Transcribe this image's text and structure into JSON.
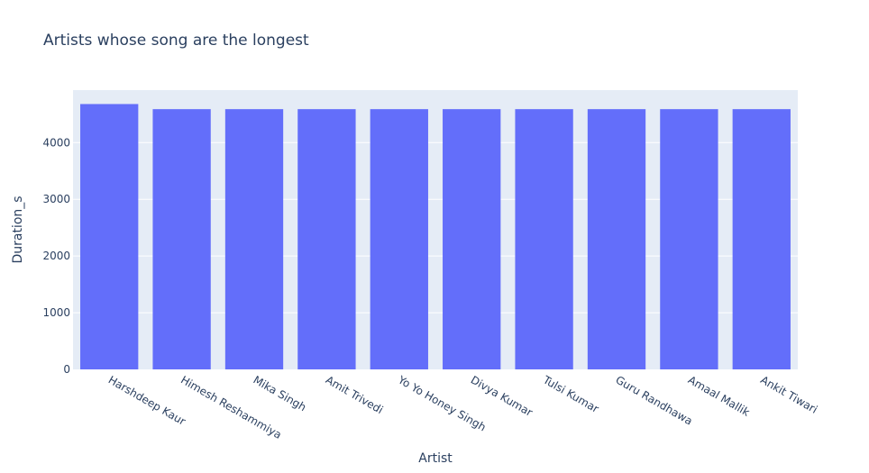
{
  "chart_data": {
    "type": "bar",
    "title": "Artists whose song are the longest",
    "xlabel": "Artist",
    "ylabel": "Duration_s",
    "categories": [
      "Harshdeep Kaur",
      "Himesh Reshammiya",
      "Mika Singh",
      "Amit Trivedi",
      "Yo Yo Honey Singh",
      "Divya Kumar",
      "Tulsi Kumar",
      "Guru Randhawa",
      "Amaal Mallik",
      "Ankit Tiwari"
    ],
    "values": [
      4680,
      4590,
      4590,
      4590,
      4590,
      4590,
      4590,
      4590,
      4590,
      4590
    ],
    "ylim": [
      0,
      4926
    ],
    "yticks": [
      0,
      1000,
      2000,
      3000,
      4000
    ],
    "grid": true,
    "colors": {
      "bar": "#636efa",
      "plot_bg": "#e5ecf6",
      "grid": "#ffffff",
      "text": "#2a3f5f"
    }
  }
}
